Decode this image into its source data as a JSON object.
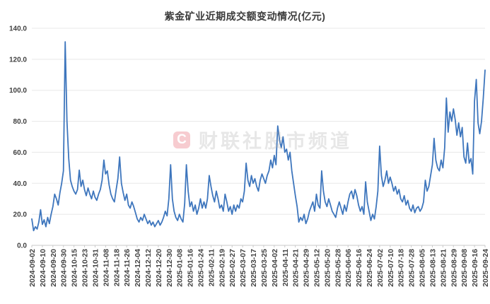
{
  "title": "紫金矿业近期成交额变动情况(亿元)",
  "watermark": {
    "logo_letter": "C",
    "text": "财联社股市频道"
  },
  "colors": {
    "line": "#3E76BD",
    "grid": "#E8E8E8",
    "axis": "#C9C9C9",
    "tick_text": "#404040",
    "title_text": "#3B3B3B",
    "watermark_badge": "#F7CCD0",
    "background": "#FFFFFF"
  },
  "chart_data": {
    "type": "line",
    "title": "紫金矿业近期成交额变动情况(亿元)",
    "xlabel": "",
    "ylabel": "",
    "ylim": [
      0,
      140
    ],
    "ytick_step": 20,
    "ytick_labels": [
      "0.0",
      "20.0",
      "40.0",
      "60.0",
      "80.0",
      "100.0",
      "120.0",
      "140.0"
    ],
    "x_tick_every": 6,
    "grid": "horizontal",
    "legend": "none",
    "series_name": "成交额(亿元)",
    "dates": [
      "2024-09-02",
      "2024-09-03",
      "2024-09-04",
      "2024-09-05",
      "2024-09-06",
      "2024-09-09",
      "2024-09-10",
      "2024-09-11",
      "2024-09-12",
      "2024-09-13",
      "2024-09-18",
      "2024-09-19",
      "2024-09-20",
      "2024-09-23",
      "2024-09-24",
      "2024-09-25",
      "2024-09-26",
      "2024-09-27",
      "2024-09-30",
      "2024-10-08",
      "2024-10-09",
      "2024-10-10",
      "2024-10-11",
      "2024-10-14",
      "2024-10-15",
      "2024-10-16",
      "2024-10-17",
      "2024-10-18",
      "2024-10-21",
      "2024-10-22",
      "2024-10-23",
      "2024-10-24",
      "2024-10-25",
      "2024-10-28",
      "2024-10-29",
      "2024-10-30",
      "2024-10-31",
      "2024-11-01",
      "2024-11-04",
      "2024-11-05",
      "2024-11-06",
      "2024-11-07",
      "2024-11-08",
      "2024-11-11",
      "2024-11-12",
      "2024-11-13",
      "2024-11-14",
      "2024-11-15",
      "2024-11-18",
      "2024-11-19",
      "2024-11-20",
      "2024-11-21",
      "2024-11-22",
      "2024-11-25",
      "2024-11-26",
      "2024-11-27",
      "2024-11-28",
      "2024-11-29",
      "2024-12-02",
      "2024-12-03",
      "2024-12-04",
      "2024-12-05",
      "2024-12-06",
      "2024-12-09",
      "2024-12-10",
      "2024-12-11",
      "2024-12-12",
      "2024-12-13",
      "2024-12-16",
      "2024-12-17",
      "2024-12-18",
      "2024-12-19",
      "2024-12-20",
      "2024-12-23",
      "2024-12-24",
      "2024-12-25",
      "2024-12-26",
      "2024-12-27",
      "2024-12-30",
      "2024-12-31",
      "2025-01-02",
      "2025-01-03",
      "2025-01-06",
      "2025-01-07",
      "2025-01-08",
      "2025-01-09",
      "2025-01-10",
      "2025-01-13",
      "2025-01-14",
      "2025-01-15",
      "2025-01-16",
      "2025-01-17",
      "2025-01-20",
      "2025-01-21",
      "2025-01-22",
      "2025-01-23",
      "2025-01-24",
      "2025-01-27",
      "2025-02-05",
      "2025-02-06",
      "2025-02-07",
      "2025-02-10",
      "2025-02-11",
      "2025-02-12",
      "2025-02-13",
      "2025-02-14",
      "2025-02-17",
      "2025-02-18",
      "2025-02-19",
      "2025-02-20",
      "2025-02-21",
      "2025-02-24",
      "2025-02-25",
      "2025-02-26",
      "2025-02-27",
      "2025-02-28",
      "2025-03-03",
      "2025-03-04",
      "2025-03-05",
      "2025-03-06",
      "2025-03-07",
      "2025-03-10",
      "2025-03-11",
      "2025-03-12",
      "2025-03-13",
      "2025-03-14",
      "2025-03-17",
      "2025-03-18",
      "2025-03-19",
      "2025-03-20",
      "2025-03-21",
      "2025-03-24",
      "2025-03-25",
      "2025-03-26",
      "2025-03-27",
      "2025-03-28",
      "2025-03-31",
      "2025-04-01",
      "2025-04-02",
      "2025-04-03",
      "2025-04-07",
      "2025-04-08",
      "2025-04-09",
      "2025-04-10",
      "2025-04-11",
      "2025-04-14",
      "2025-04-15",
      "2025-04-16",
      "2025-04-17",
      "2025-04-18",
      "2025-04-21",
      "2025-04-22",
      "2025-04-23",
      "2025-04-24",
      "2025-04-25",
      "2025-04-28",
      "2025-04-29",
      "2025-04-30",
      "2025-05-06",
      "2025-05-07",
      "2025-05-08",
      "2025-05-09",
      "2025-05-12",
      "2025-05-13",
      "2025-05-14",
      "2025-05-15",
      "2025-05-16",
      "2025-05-19",
      "2025-05-20",
      "2025-05-21",
      "2025-05-22",
      "2025-05-23",
      "2025-05-26",
      "2025-05-27",
      "2025-05-28",
      "2025-05-29",
      "2025-05-30",
      "2025-06-03",
      "2025-06-04",
      "2025-06-05",
      "2025-06-06",
      "2025-06-09",
      "2025-06-10",
      "2025-06-11",
      "2025-06-12",
      "2025-06-13",
      "2025-06-16",
      "2025-06-17",
      "2025-06-18",
      "2025-06-19",
      "2025-06-20",
      "2025-06-23",
      "2025-06-24",
      "2025-06-25",
      "2025-06-26",
      "2025-06-27",
      "2025-06-30",
      "2025-07-01",
      "2025-07-02",
      "2025-07-03",
      "2025-07-04",
      "2025-07-07",
      "2025-07-08",
      "2025-07-09",
      "2025-07-10",
      "2025-07-11",
      "2025-07-14",
      "2025-07-15",
      "2025-07-16",
      "2025-07-17",
      "2025-07-18",
      "2025-07-21",
      "2025-07-22",
      "2025-07-23",
      "2025-07-24",
      "2025-07-25",
      "2025-07-28",
      "2025-07-29",
      "2025-07-30",
      "2025-07-31",
      "2025-08-01",
      "2025-08-04",
      "2025-08-05",
      "2025-08-06",
      "2025-08-07",
      "2025-08-08",
      "2025-08-11",
      "2025-08-12",
      "2025-08-13",
      "2025-08-14",
      "2025-08-15",
      "2025-08-18",
      "2025-08-19",
      "2025-08-20",
      "2025-08-21",
      "2025-08-22",
      "2025-08-25",
      "2025-08-26",
      "2025-08-27",
      "2025-08-28",
      "2025-08-29",
      "2025-09-01",
      "2025-09-02",
      "2025-09-03",
      "2025-09-04",
      "2025-09-05",
      "2025-09-08",
      "2025-09-09",
      "2025-09-10",
      "2025-09-11",
      "2025-09-12",
      "2025-09-15",
      "2025-09-16",
      "2025-09-17",
      "2025-09-18",
      "2025-09-19",
      "2025-09-22",
      "2025-09-23",
      "2025-09-24"
    ],
    "values": [
      17.0,
      9.5,
      12.0,
      10.5,
      15.0,
      23.0,
      13.5,
      16.5,
      12.0,
      18.0,
      14.0,
      20.0,
      25.0,
      33.0,
      30.0,
      26.0,
      34.0,
      40.0,
      48.0,
      131.3,
      80.0,
      56.0,
      42.0,
      38.0,
      35.0,
      33.0,
      36.0,
      48.5,
      38.0,
      42.0,
      36.0,
      32.0,
      37.0,
      33.0,
      30.0,
      35.0,
      31.0,
      29.0,
      33.0,
      36.0,
      42.0,
      55.0,
      46.0,
      48.0,
      39.0,
      33.0,
      30.0,
      28.0,
      36.0,
      43.0,
      57.0,
      40.0,
      34.0,
      29.0,
      33.0,
      26.0,
      24.0,
      28.0,
      25.0,
      21.0,
      17.0,
      15.0,
      18.0,
      16.0,
      20.0,
      17.0,
      14.0,
      16.0,
      13.0,
      15.0,
      12.0,
      14.0,
      16.0,
      13.0,
      15.0,
      18.0,
      22.0,
      19.0,
      30.0,
      52.0,
      30.0,
      22.0,
      18.0,
      16.0,
      20.0,
      17.0,
      15.0,
      27.0,
      52.0,
      35.0,
      25.0,
      28.0,
      22.0,
      26.0,
      20.0,
      24.0,
      30.0,
      24.0,
      28.0,
      24.0,
      30.0,
      45.0,
      38.0,
      32.0,
      28.0,
      35.0,
      30.0,
      24.0,
      26.0,
      22.0,
      33.0,
      28.0,
      22.0,
      25.0,
      20.0,
      26.0,
      22.0,
      26.0,
      24.0,
      30.0,
      28.0,
      35.0,
      53.0,
      42.0,
      38.0,
      45.0,
      40.0,
      43.0,
      38.0,
      35.0,
      42.0,
      46.0,
      43.0,
      40.0,
      45.0,
      48.0,
      55.0,
      50.0,
      58.0,
      52.0,
      77.0,
      68.0,
      63.0,
      70.0,
      60.0,
      62.0,
      55.0,
      60.0,
      48.0,
      40.0,
      32.0,
      25.0,
      15.0,
      18.0,
      16.0,
      20.0,
      14.0,
      17.0,
      22.0,
      25.0,
      28.0,
      22.0,
      33.0,
      26.0,
      24.0,
      48.0,
      35.0,
      28.0,
      25.0,
      30.0,
      26.0,
      22.0,
      20.0,
      18.0,
      24.0,
      28.0,
      24.0,
      20.0,
      26.0,
      22.0,
      28.0,
      33.0,
      35.0,
      30.0,
      36.0,
      32.0,
      26.0,
      22.0,
      25.0,
      20.0,
      41.0,
      28.0,
      22.0,
      16.0,
      20.0,
      17.0,
      25.0,
      35.0,
      64.0,
      45.0,
      38.0,
      42.0,
      48.0,
      40.0,
      44.0,
      40.0,
      35.0,
      38.0,
      33.0,
      36.0,
      30.0,
      28.0,
      32.0,
      26.0,
      29.0,
      24.0,
      22.0,
      26.0,
      21.0,
      24.0,
      25.0,
      22.0,
      24.0,
      28.0,
      42.0,
      35.0,
      38.0,
      45.0,
      52.0,
      69.0,
      55.0,
      50.0,
      48.0,
      55.0,
      50.0,
      63.0,
      95.0,
      73.0,
      86.0,
      80.0,
      88.0,
      81.0,
      71.0,
      79.0,
      70.0,
      76.0,
      57.0,
      53.0,
      66.0,
      53.0,
      56.0,
      46.0,
      93.0,
      107.0,
      79.0,
      72.0,
      80.0,
      95.0,
      113.0
    ]
  }
}
